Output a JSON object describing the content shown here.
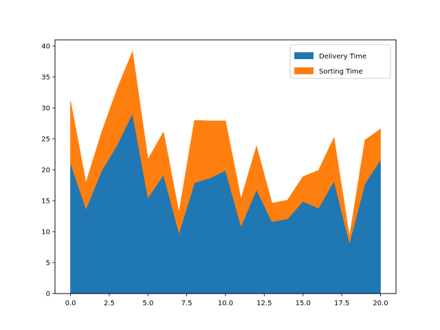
{
  "chart_data": {
    "type": "area",
    "stacked": true,
    "x": [
      0,
      1,
      2,
      3,
      4,
      5,
      6,
      7,
      8,
      9,
      10,
      11,
      12,
      13,
      14,
      15,
      16,
      17,
      18,
      19,
      20
    ],
    "series": [
      {
        "name": "Delivery Time",
        "color": "#1f77b4",
        "values": [
          21.1,
          13.7,
          19.8,
          24.0,
          29.1,
          15.5,
          19.2,
          9.8,
          17.9,
          18.7,
          19.9,
          10.9,
          16.8,
          11.6,
          12.1,
          14.9,
          13.8,
          18.2,
          8.2,
          17.8,
          21.6
        ]
      },
      {
        "name": "Sorting Time",
        "color": "#ff7f0e",
        "values": [
          10.0,
          4.2,
          6.2,
          9.0,
          10.0,
          6.2,
          6.9,
          3.3,
          10.1,
          9.2,
          8.0,
          4.4,
          7.0,
          3.0,
          3.0,
          4.0,
          6.1,
          7.0,
          1.0,
          7.0,
          5.0
        ]
      }
    ],
    "xlim": [
      -1,
      21
    ],
    "ylim": [
      0,
      41
    ],
    "x_ticks": [
      0.0,
      2.5,
      5.0,
      7.5,
      10.0,
      12.5,
      15.0,
      17.5,
      20.0
    ],
    "x_tick_labels": [
      "0.0",
      "2.5",
      "5.0",
      "7.5",
      "10.0",
      "12.5",
      "15.0",
      "17.5",
      "20.0"
    ],
    "y_ticks": [
      0,
      5,
      10,
      15,
      20,
      25,
      30,
      35,
      40
    ],
    "y_tick_labels": [
      "0",
      "5",
      "10",
      "15",
      "20",
      "25",
      "30",
      "35",
      "40"
    ],
    "grid": false,
    "legend_position": "upper right",
    "title": "",
    "xlabel": "",
    "ylabel": ""
  }
}
